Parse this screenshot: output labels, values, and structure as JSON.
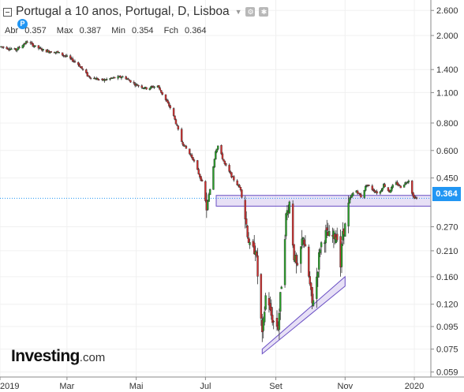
{
  "header": {
    "title": "Portugal a 10 anos, Portugal, D, Lisboa",
    "open_label": "Abr",
    "open_value": "0.357",
    "max_label": "Max",
    "max_value": "0.387",
    "min_label": "Min",
    "min_value": "0.354",
    "close_label": "Fch",
    "close_value": "0.364",
    "badge": "P"
  },
  "logo": {
    "text": "Investing",
    "suffix": ".com"
  },
  "colors": {
    "up": "#29a329",
    "down": "#d32f2f",
    "band": "#b9a7e6",
    "accent": "#2196f3"
  },
  "chart_data": {
    "type": "candlestick",
    "title": "Portugal a 10 anos, Portugal, D, Lisboa",
    "y_scale": "log",
    "ylim": [
      0.056,
      2.9
    ],
    "x_ticks": [
      "2019",
      "Mar",
      "Mai",
      "Jul",
      "Set",
      "Nov",
      "2020"
    ],
    "y_ticks": [
      "2.600",
      "2.000",
      "1.400",
      "1.100",
      "0.800",
      "0.600",
      "0.450",
      "0.364",
      "0.270",
      "0.210",
      "0.160",
      "0.120",
      "0.095",
      "0.075",
      "0.059"
    ],
    "last_price": "0.364",
    "resistance_zone": [
      0.335,
      0.375
    ],
    "support_line_start": {
      "date": "2019-08-20",
      "value": 0.075
    },
    "support_line_end": {
      "date": "2019-11-01",
      "value": 0.145
    },
    "series": [
      {
        "name": "path",
        "points": [
          [
            "2019-01-02",
            1.78
          ],
          [
            "2019-01-15",
            1.72
          ],
          [
            "2019-01-25",
            1.88
          ],
          [
            "2019-02-01",
            1.78
          ],
          [
            "2019-02-10",
            1.7
          ],
          [
            "2019-02-20",
            1.68
          ],
          [
            "2019-03-01",
            1.6
          ],
          [
            "2019-03-10",
            1.5
          ],
          [
            "2019-03-20",
            1.3
          ],
          [
            "2019-04-01",
            1.25
          ],
          [
            "2019-04-10",
            1.28
          ],
          [
            "2019-04-20",
            1.3
          ],
          [
            "2019-04-30",
            1.2
          ],
          [
            "2019-05-10",
            1.15
          ],
          [
            "2019-05-20",
            1.18
          ],
          [
            "2019-05-25",
            1.06
          ],
          [
            "2019-06-01",
            0.92
          ],
          [
            "2019-06-05",
            0.8
          ],
          [
            "2019-06-10",
            0.66
          ],
          [
            "2019-06-15",
            0.6
          ],
          [
            "2019-06-20",
            0.55
          ],
          [
            "2019-06-28",
            0.43
          ],
          [
            "2019-07-02",
            0.33
          ],
          [
            "2019-07-05",
            0.4
          ],
          [
            "2019-07-10",
            0.6
          ],
          [
            "2019-07-12",
            0.63
          ],
          [
            "2019-07-18",
            0.52
          ],
          [
            "2019-07-25",
            0.45
          ],
          [
            "2019-08-01",
            0.4
          ],
          [
            "2019-08-05",
            0.3
          ],
          [
            "2019-08-10",
            0.2
          ],
          [
            "2019-08-14",
            0.22
          ],
          [
            "2019-08-18",
            0.12
          ],
          [
            "2019-08-20",
            0.085
          ],
          [
            "2019-08-24",
            0.15
          ],
          [
            "2019-08-27",
            0.11
          ],
          [
            "2019-08-30",
            0.1
          ],
          [
            "2019-09-03",
            0.095
          ],
          [
            "2019-09-06",
            0.15
          ],
          [
            "2019-09-10",
            0.3
          ],
          [
            "2019-09-13",
            0.35
          ],
          [
            "2019-09-17",
            0.2
          ],
          [
            "2019-09-20",
            0.17
          ],
          [
            "2019-09-25",
            0.25
          ],
          [
            "2019-09-30",
            0.16
          ],
          [
            "2019-10-03",
            0.12
          ],
          [
            "2019-10-07",
            0.16
          ],
          [
            "2019-10-10",
            0.22
          ],
          [
            "2019-10-15",
            0.25
          ],
          [
            "2019-10-20",
            0.24
          ],
          [
            "2019-10-25",
            0.25
          ],
          [
            "2019-10-28",
            0.18
          ],
          [
            "2019-10-30",
            0.26
          ],
          [
            "2019-11-01",
            0.27
          ],
          [
            "2019-11-05",
            0.36
          ],
          [
            "2019-11-10",
            0.4
          ],
          [
            "2019-11-15",
            0.37
          ],
          [
            "2019-11-20",
            0.42
          ],
          [
            "2019-11-25",
            0.4
          ],
          [
            "2019-12-01",
            0.38
          ],
          [
            "2019-12-05",
            0.42
          ],
          [
            "2019-12-10",
            0.39
          ],
          [
            "2019-12-15",
            0.43
          ],
          [
            "2019-12-20",
            0.41
          ],
          [
            "2019-12-27",
            0.44
          ],
          [
            "2019-12-31",
            0.37
          ],
          [
            "2020-01-03",
            0.364
          ]
        ]
      }
    ]
  }
}
